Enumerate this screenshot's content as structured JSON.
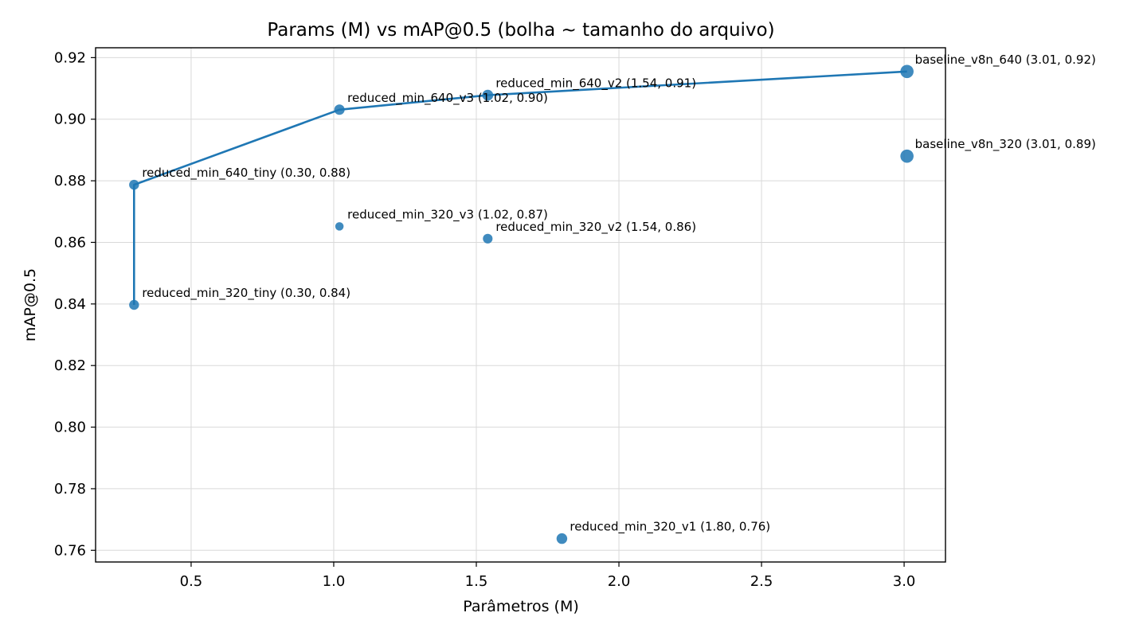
{
  "chart_data": {
    "type": "scatter",
    "title": "Params (M) vs mAP@0.5 (bolha ~ tamanho do arquivo)",
    "xlabel": "Parâmetros (M)",
    "ylabel": "mAP@0.5",
    "xlim": [
      0.165,
      3.145
    ],
    "ylim": [
      0.7562,
      0.9232
    ],
    "xticks": [
      {
        "value": 0.5,
        "label": "0.5"
      },
      {
        "value": 1.0,
        "label": "1.0"
      },
      {
        "value": 1.5,
        "label": "1.5"
      },
      {
        "value": 2.0,
        "label": "2.0"
      },
      {
        "value": 2.5,
        "label": "2.5"
      },
      {
        "value": 3.0,
        "label": "3.0"
      }
    ],
    "yticks": [
      {
        "value": 0.76,
        "label": "0.76"
      },
      {
        "value": 0.78,
        "label": "0.78"
      },
      {
        "value": 0.8,
        "label": "0.80"
      },
      {
        "value": 0.82,
        "label": "0.82"
      },
      {
        "value": 0.84,
        "label": "0.84"
      },
      {
        "value": 0.86,
        "label": "0.86"
      },
      {
        "value": 0.88,
        "label": "0.88"
      },
      {
        "value": 0.9,
        "label": "0.90"
      },
      {
        "value": 0.92,
        "label": "0.92"
      }
    ],
    "grid": true,
    "color": "#1f77b4",
    "points": [
      {
        "label": "baseline_v8n_640 (3.01, 0.92)",
        "x": 3.01,
        "y": 0.9155,
        "size": 3.0
      },
      {
        "label": "baseline_v8n_320 (3.01, 0.89)",
        "x": 3.01,
        "y": 0.888,
        "size": 3.0
      },
      {
        "label": "reduced_min_640_v2 (1.54, 0.91)",
        "x": 1.54,
        "y": 0.9078,
        "size": 2.1
      },
      {
        "label": "reduced_min_640_v3 (1.02, 0.90)",
        "x": 1.02,
        "y": 0.9031,
        "size": 1.9
      },
      {
        "label": "reduced_min_640_tiny (0.30, 0.88)",
        "x": 0.3,
        "y": 0.8787,
        "size": 1.7
      },
      {
        "label": "reduced_min_320_v3 (1.02, 0.87)",
        "x": 1.02,
        "y": 0.8652,
        "size": 1.1
      },
      {
        "label": "reduced_min_320_v2 (1.54, 0.86)",
        "x": 1.54,
        "y": 0.8612,
        "size": 1.6
      },
      {
        "label": "reduced_min_320_tiny (0.30, 0.84)",
        "x": 0.3,
        "y": 0.8397,
        "size": 1.7
      },
      {
        "label": "reduced_min_320_v1 (1.80, 0.76)",
        "x": 1.8,
        "y": 0.7638,
        "size": 2.0
      }
    ],
    "frontier": [
      {
        "x": 0.3,
        "y": 0.8397
      },
      {
        "x": 0.3,
        "y": 0.8787
      },
      {
        "x": 1.02,
        "y": 0.9031
      },
      {
        "x": 1.54,
        "y": 0.9078
      },
      {
        "x": 3.01,
        "y": 0.9155
      }
    ]
  }
}
